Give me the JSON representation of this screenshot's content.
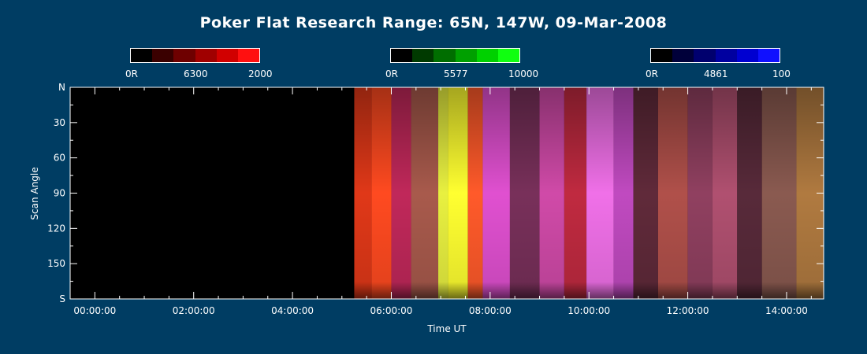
{
  "title": "Poker Flat Research Range: 65N, 147W, 09-Mar-2008",
  "colorbars": [
    {
      "name": "red",
      "min_label": "0R",
      "mid_label": "6300",
      "max_label": "2000",
      "colors": [
        "#000000",
        "#3a0000",
        "#6e0000",
        "#a00000",
        "#d10000",
        "#ff1010"
      ]
    },
    {
      "name": "green",
      "min_label": "0R",
      "mid_label": "5577",
      "max_label": "10000",
      "colors": [
        "#000000",
        "#003a00",
        "#006e00",
        "#00a000",
        "#00d100",
        "#10ff10"
      ]
    },
    {
      "name": "blue",
      "min_label": "0R",
      "mid_label": "4861",
      "max_label": "100",
      "colors": [
        "#000000",
        "#00003a",
        "#00006e",
        "#0000a0",
        "#0000d1",
        "#1010ff"
      ]
    }
  ],
  "chart_data": {
    "type": "heatmap",
    "title": "Poker Flat Research Range: 65N, 147W, 09-Mar-2008",
    "xlabel": "Time UT",
    "ylabel": "Scan Angle",
    "x_range_hours": [
      -0.5,
      14.75
    ],
    "x_ticks": [
      "00:00:00",
      "02:00:00",
      "04:00:00",
      "06:00:00",
      "08:00:00",
      "10:00:00",
      "12:00:00",
      "14:00:00"
    ],
    "y_range_deg": [
      0,
      180
    ],
    "y_ticks": [
      "N",
      "30",
      "60",
      "90",
      "120",
      "150",
      "S"
    ],
    "data_start_hour": 5.25,
    "data_end_hour": 14.75,
    "bands": [
      {
        "start": 5.25,
        "end": 5.6,
        "color": "#e03818"
      },
      {
        "start": 5.6,
        "end": 6.0,
        "color": "#ff4a20"
      },
      {
        "start": 6.0,
        "end": 6.4,
        "color": "#c0285a"
      },
      {
        "start": 6.4,
        "end": 6.95,
        "color": "#a85a4c"
      },
      {
        "start": 6.95,
        "end": 7.15,
        "color": "#e8f040"
      },
      {
        "start": 7.15,
        "end": 7.55,
        "color": "#ffff30"
      },
      {
        "start": 7.55,
        "end": 7.85,
        "color": "#ff5a2a"
      },
      {
        "start": 7.85,
        "end": 8.4,
        "color": "#e050d0"
      },
      {
        "start": 8.4,
        "end": 9.0,
        "color": "#78305a"
      },
      {
        "start": 9.0,
        "end": 9.5,
        "color": "#d04aa8"
      },
      {
        "start": 9.5,
        "end": 9.95,
        "color": "#c02a40"
      },
      {
        "start": 9.95,
        "end": 10.5,
        "color": "#f070e8"
      },
      {
        "start": 10.5,
        "end": 10.9,
        "color": "#c04ac0"
      },
      {
        "start": 10.9,
        "end": 11.4,
        "color": "#602a3a"
      },
      {
        "start": 11.4,
        "end": 12.0,
        "color": "#b0504a"
      },
      {
        "start": 12.0,
        "end": 12.5,
        "color": "#904060"
      },
      {
        "start": 12.5,
        "end": 13.0,
        "color": "#b05070"
      },
      {
        "start": 13.0,
        "end": 13.5,
        "color": "#582a3a"
      },
      {
        "start": 13.5,
        "end": 14.2,
        "color": "#8a5a50"
      },
      {
        "start": 14.2,
        "end": 14.75,
        "color": "#b07a40"
      }
    ]
  }
}
